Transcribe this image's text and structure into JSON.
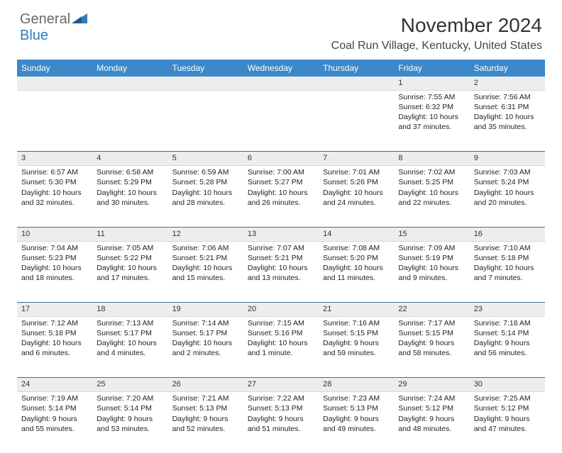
{
  "brand": {
    "general": "General",
    "blue": "Blue"
  },
  "header": {
    "title": "November 2024",
    "subtitle": "Coal Run Village, Kentucky, United States"
  },
  "colors": {
    "header_bg": "#3b89c9",
    "header_text": "#ffffff",
    "daynum_bg": "#ededed",
    "rule": "#3b6fa0",
    "brand_gray": "#6a6a6a",
    "brand_blue": "#2f7bc0"
  },
  "weekdays": [
    "Sunday",
    "Monday",
    "Tuesday",
    "Wednesday",
    "Thursday",
    "Friday",
    "Saturday"
  ],
  "weeks": [
    [
      null,
      null,
      null,
      null,
      null,
      {
        "num": "1",
        "sunrise": "Sunrise: 7:55 AM",
        "sunset": "Sunset: 6:32 PM",
        "daylight": "Daylight: 10 hours and 37 minutes."
      },
      {
        "num": "2",
        "sunrise": "Sunrise: 7:56 AM",
        "sunset": "Sunset: 6:31 PM",
        "daylight": "Daylight: 10 hours and 35 minutes."
      }
    ],
    [
      {
        "num": "3",
        "sunrise": "Sunrise: 6:57 AM",
        "sunset": "Sunset: 5:30 PM",
        "daylight": "Daylight: 10 hours and 32 minutes."
      },
      {
        "num": "4",
        "sunrise": "Sunrise: 6:58 AM",
        "sunset": "Sunset: 5:29 PM",
        "daylight": "Daylight: 10 hours and 30 minutes."
      },
      {
        "num": "5",
        "sunrise": "Sunrise: 6:59 AM",
        "sunset": "Sunset: 5:28 PM",
        "daylight": "Daylight: 10 hours and 28 minutes."
      },
      {
        "num": "6",
        "sunrise": "Sunrise: 7:00 AM",
        "sunset": "Sunset: 5:27 PM",
        "daylight": "Daylight: 10 hours and 26 minutes."
      },
      {
        "num": "7",
        "sunrise": "Sunrise: 7:01 AM",
        "sunset": "Sunset: 5:26 PM",
        "daylight": "Daylight: 10 hours and 24 minutes."
      },
      {
        "num": "8",
        "sunrise": "Sunrise: 7:02 AM",
        "sunset": "Sunset: 5:25 PM",
        "daylight": "Daylight: 10 hours and 22 minutes."
      },
      {
        "num": "9",
        "sunrise": "Sunrise: 7:03 AM",
        "sunset": "Sunset: 5:24 PM",
        "daylight": "Daylight: 10 hours and 20 minutes."
      }
    ],
    [
      {
        "num": "10",
        "sunrise": "Sunrise: 7:04 AM",
        "sunset": "Sunset: 5:23 PM",
        "daylight": "Daylight: 10 hours and 18 minutes."
      },
      {
        "num": "11",
        "sunrise": "Sunrise: 7:05 AM",
        "sunset": "Sunset: 5:22 PM",
        "daylight": "Daylight: 10 hours and 17 minutes."
      },
      {
        "num": "12",
        "sunrise": "Sunrise: 7:06 AM",
        "sunset": "Sunset: 5:21 PM",
        "daylight": "Daylight: 10 hours and 15 minutes."
      },
      {
        "num": "13",
        "sunrise": "Sunrise: 7:07 AM",
        "sunset": "Sunset: 5:21 PM",
        "daylight": "Daylight: 10 hours and 13 minutes."
      },
      {
        "num": "14",
        "sunrise": "Sunrise: 7:08 AM",
        "sunset": "Sunset: 5:20 PM",
        "daylight": "Daylight: 10 hours and 11 minutes."
      },
      {
        "num": "15",
        "sunrise": "Sunrise: 7:09 AM",
        "sunset": "Sunset: 5:19 PM",
        "daylight": "Daylight: 10 hours and 9 minutes."
      },
      {
        "num": "16",
        "sunrise": "Sunrise: 7:10 AM",
        "sunset": "Sunset: 5:18 PM",
        "daylight": "Daylight: 10 hours and 7 minutes."
      }
    ],
    [
      {
        "num": "17",
        "sunrise": "Sunrise: 7:12 AM",
        "sunset": "Sunset: 5:18 PM",
        "daylight": "Daylight: 10 hours and 6 minutes."
      },
      {
        "num": "18",
        "sunrise": "Sunrise: 7:13 AM",
        "sunset": "Sunset: 5:17 PM",
        "daylight": "Daylight: 10 hours and 4 minutes."
      },
      {
        "num": "19",
        "sunrise": "Sunrise: 7:14 AM",
        "sunset": "Sunset: 5:17 PM",
        "daylight": "Daylight: 10 hours and 2 minutes."
      },
      {
        "num": "20",
        "sunrise": "Sunrise: 7:15 AM",
        "sunset": "Sunset: 5:16 PM",
        "daylight": "Daylight: 10 hours and 1 minute."
      },
      {
        "num": "21",
        "sunrise": "Sunrise: 7:16 AM",
        "sunset": "Sunset: 5:15 PM",
        "daylight": "Daylight: 9 hours and 59 minutes."
      },
      {
        "num": "22",
        "sunrise": "Sunrise: 7:17 AM",
        "sunset": "Sunset: 5:15 PM",
        "daylight": "Daylight: 9 hours and 58 minutes."
      },
      {
        "num": "23",
        "sunrise": "Sunrise: 7:18 AM",
        "sunset": "Sunset: 5:14 PM",
        "daylight": "Daylight: 9 hours and 56 minutes."
      }
    ],
    [
      {
        "num": "24",
        "sunrise": "Sunrise: 7:19 AM",
        "sunset": "Sunset: 5:14 PM",
        "daylight": "Daylight: 9 hours and 55 minutes."
      },
      {
        "num": "25",
        "sunrise": "Sunrise: 7:20 AM",
        "sunset": "Sunset: 5:14 PM",
        "daylight": "Daylight: 9 hours and 53 minutes."
      },
      {
        "num": "26",
        "sunrise": "Sunrise: 7:21 AM",
        "sunset": "Sunset: 5:13 PM",
        "daylight": "Daylight: 9 hours and 52 minutes."
      },
      {
        "num": "27",
        "sunrise": "Sunrise: 7:22 AM",
        "sunset": "Sunset: 5:13 PM",
        "daylight": "Daylight: 9 hours and 51 minutes."
      },
      {
        "num": "28",
        "sunrise": "Sunrise: 7:23 AM",
        "sunset": "Sunset: 5:13 PM",
        "daylight": "Daylight: 9 hours and 49 minutes."
      },
      {
        "num": "29",
        "sunrise": "Sunrise: 7:24 AM",
        "sunset": "Sunset: 5:12 PM",
        "daylight": "Daylight: 9 hours and 48 minutes."
      },
      {
        "num": "30",
        "sunrise": "Sunrise: 7:25 AM",
        "sunset": "Sunset: 5:12 PM",
        "daylight": "Daylight: 9 hours and 47 minutes."
      }
    ]
  ]
}
